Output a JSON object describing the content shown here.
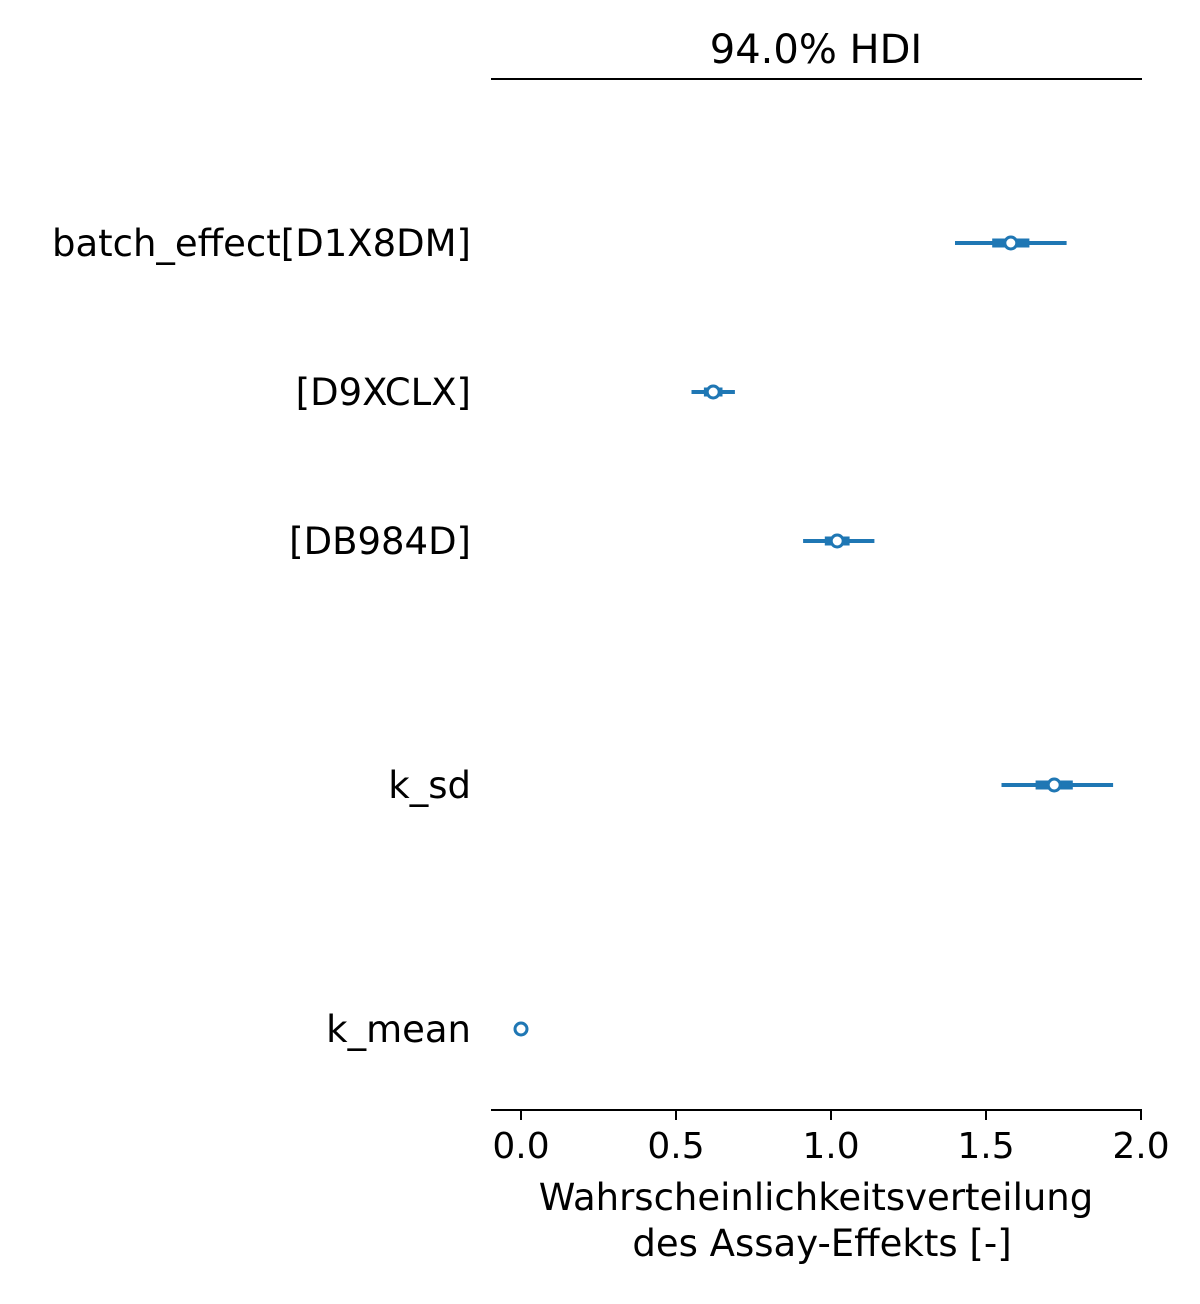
{
  "chart_data": {
    "type": "forest",
    "title": "94.0% HDI",
    "xlabel_lines": [
      "Wahrscheinlichkeitsverteilung",
      "des Assay-Effekts [-]"
    ],
    "xlim": [
      -0.1,
      2.0
    ],
    "xticks": [
      0.0,
      0.5,
      1.0,
      1.5,
      2.0
    ],
    "xtick_labels": [
      "0.0",
      "0.5",
      "1.0",
      "1.5",
      "2.0"
    ],
    "rows": [
      {
        "label": "batch_effect[D1X8DM]",
        "mean": 1.58,
        "hdi_low": 1.4,
        "hdi_high": 1.76,
        "iqr_low": 1.52,
        "iqr_high": 1.64
      },
      {
        "label": "[D9XCLX]",
        "mean": 0.62,
        "hdi_low": 0.55,
        "hdi_high": 0.69,
        "iqr_low": 0.59,
        "iqr_high": 0.65
      },
      {
        "label": "[DB984D]",
        "mean": 1.02,
        "hdi_low": 0.91,
        "hdi_high": 1.14,
        "iqr_low": 0.98,
        "iqr_high": 1.06
      },
      {
        "label": "k_sd",
        "mean": 1.72,
        "hdi_low": 1.55,
        "hdi_high": 1.91,
        "iqr_low": 1.66,
        "iqr_high": 1.78
      },
      {
        "label": "k_mean",
        "mean": 0.0,
        "hdi_low": 0.0,
        "hdi_high": 0.0,
        "iqr_low": 0.0,
        "iqr_high": 0.0
      }
    ],
    "color": "#1f77b4"
  }
}
